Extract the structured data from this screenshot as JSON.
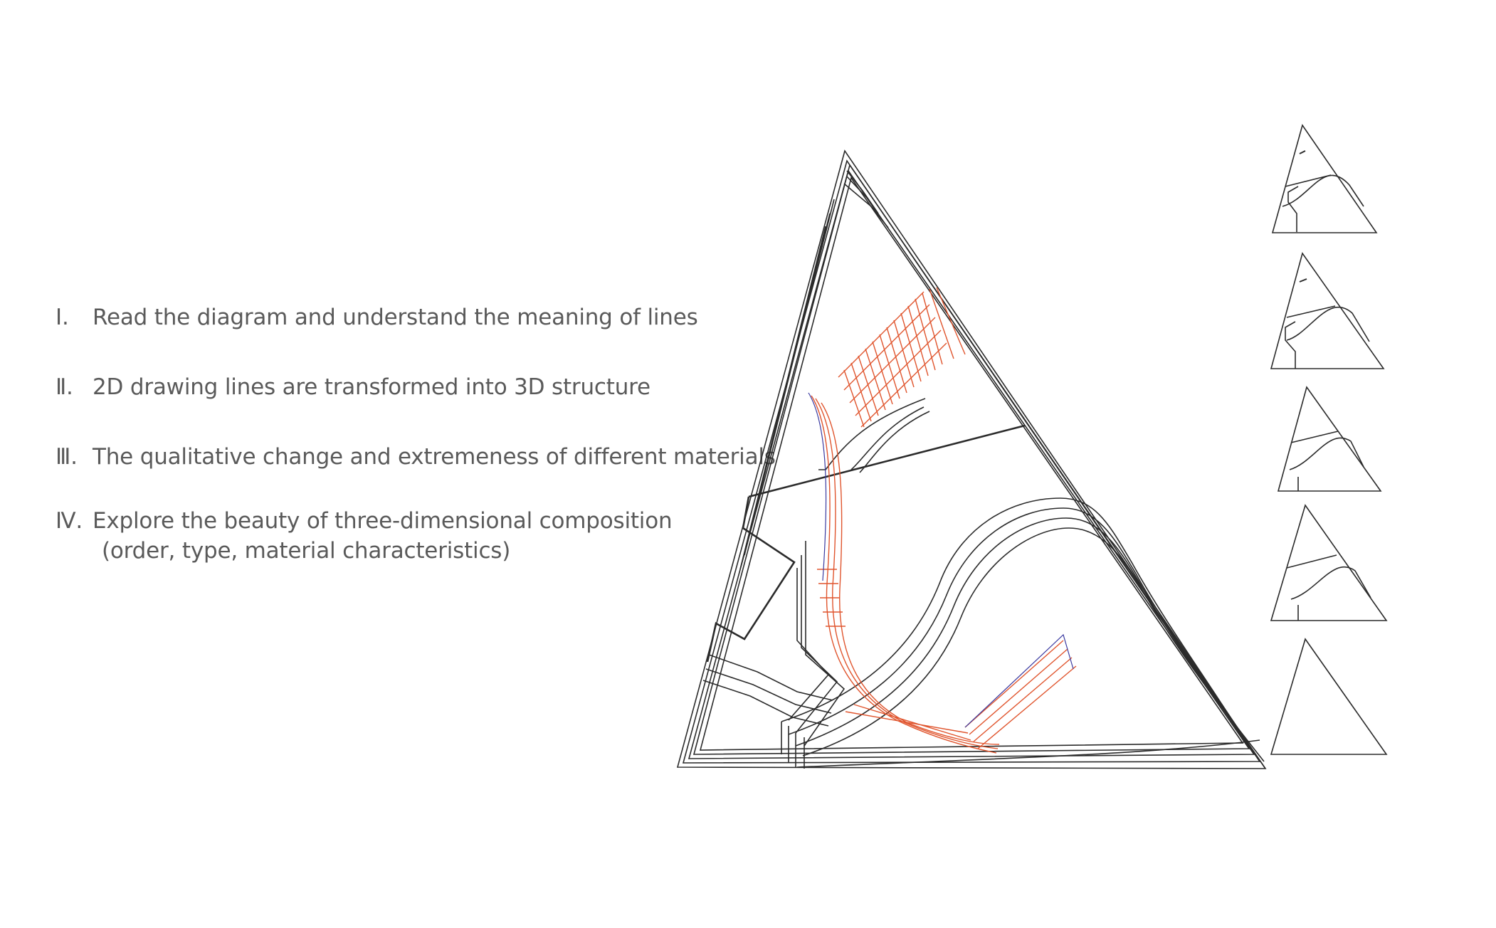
{
  "items": [
    {
      "numeral": "Ⅰ.",
      "text": "Read the diagram and understand the meaning of lines"
    },
    {
      "numeral": "Ⅱ.",
      "text": "2D drawing lines are transformed into 3D structure"
    },
    {
      "numeral": "Ⅲ.",
      "text": "The qualitative change and extremeness of different materials"
    },
    {
      "numeral": "Ⅳ.",
      "text": "Explore the beauty of three-dimensional composition",
      "subtext": "(order, type, material characteristics)"
    }
  ],
  "colors": {
    "line": "#2b2b2b",
    "accent": "#e0552e",
    "text": "#5a5a5a"
  }
}
